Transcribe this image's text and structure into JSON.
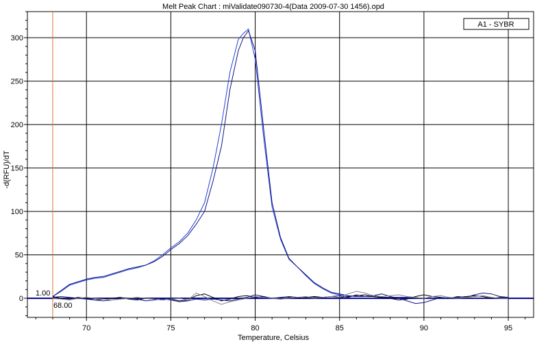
{
  "chart_data": {
    "type": "line",
    "title": "Melt Peak Chart : miValidate090730-4(Data 2009-07-30 1456).opd",
    "xlabel": "Temperature, Celsius",
    "ylabel": "-d(RFU)/dT",
    "xlim": [
      66.5,
      96.5
    ],
    "ylim": [
      -22,
      330
    ],
    "x_ticks": [
      70,
      75,
      80,
      85,
      90,
      95
    ],
    "y_ticks": [
      0,
      50,
      100,
      150,
      200,
      250,
      300
    ],
    "grid": true,
    "legend": {
      "entries": [
        "A1 - SYBR"
      ],
      "position": "top-right"
    },
    "threshold": {
      "value": 0,
      "label": "1.00"
    },
    "marker": {
      "value": 68,
      "label": "68.00"
    },
    "colors": {
      "series": "#1f3fd6",
      "series_alt": "#101080",
      "noise_dark": "#000000",
      "noise_gray": "#808080",
      "marker": "#e07030",
      "threshold": "#00008b"
    },
    "series": [
      {
        "values_x": [
          68,
          68.5,
          69,
          69.5,
          70,
          70.5,
          71,
          71.5,
          72,
          72.5,
          73,
          73.5,
          74,
          74.5,
          75,
          75.5,
          76,
          76.5,
          77,
          77.5,
          78,
          78.5,
          79,
          79.3,
          79.6,
          80,
          80.5,
          81,
          81.5,
          82,
          82.5,
          83,
          83.5,
          84,
          84.5,
          85,
          85.5,
          86,
          86.5,
          87,
          87.5,
          88,
          88.5,
          89,
          89.5,
          90,
          90.5,
          91,
          91.5,
          92,
          92.5,
          93,
          93.5,
          94,
          94.5,
          95
        ],
        "values_y": [
          2,
          8,
          15,
          18,
          21,
          23,
          24,
          27,
          30,
          33,
          35,
          38,
          43,
          50,
          58,
          65,
          75,
          90,
          110,
          150,
          200,
          260,
          298,
          305,
          310,
          275,
          185,
          105,
          68,
          45,
          36,
          26,
          17,
          11,
          6,
          4,
          3,
          2,
          2,
          2,
          1,
          1,
          1,
          1,
          0,
          0,
          0,
          0,
          0,
          0,
          0,
          0,
          0,
          0,
          0,
          0
        ]
      },
      {
        "values_x": [
          68,
          68.5,
          69,
          69.5,
          70,
          70.5,
          71,
          71.5,
          72,
          72.5,
          73,
          73.5,
          74,
          74.5,
          75,
          75.5,
          76,
          76.5,
          77,
          77.5,
          78,
          78.5,
          79,
          79.3,
          79.6,
          80,
          80.5,
          81,
          81.5,
          82,
          82.5,
          83,
          83.5,
          84,
          84.5,
          85,
          85.5,
          86,
          86.5,
          87,
          87.5,
          88,
          88.5,
          89,
          89.5,
          90,
          90.5,
          91,
          91.5,
          92,
          92.5,
          93,
          93.5,
          94,
          94.5,
          95
        ],
        "values_y": [
          2,
          9,
          16,
          19,
          22,
          24,
          25,
          28,
          31,
          34,
          36,
          38,
          42,
          48,
          56,
          63,
          72,
          85,
          100,
          135,
          175,
          240,
          285,
          300,
          308,
          285,
          195,
          110,
          70,
          46,
          36,
          27,
          18,
          12,
          7,
          5,
          3,
          2,
          2,
          2,
          1,
          1,
          1,
          1,
          0,
          0,
          0,
          0,
          0,
          0,
          0,
          0,
          0,
          0,
          0,
          0
        ]
      },
      {
        "values_x": [
          68,
          68.5,
          69,
          69.5,
          70,
          70.5,
          71,
          71.5,
          72,
          72.5,
          73,
          73.5,
          74,
          74.5,
          75,
          75.5,
          76,
          76.5,
          77,
          77.5,
          78,
          78.5,
          79,
          79.5,
          80,
          80.5,
          81,
          81.5,
          82,
          82.5,
          83,
          83.5,
          84,
          84.5,
          85,
          85.5,
          86,
          86.5,
          87,
          87.5,
          88,
          88.5,
          89,
          89.5,
          90,
          90.5,
          91,
          91.5,
          92,
          92.5,
          93,
          93.5,
          94,
          94.5,
          95
        ],
        "values_y": [
          2,
          0,
          -1,
          1,
          0,
          -2,
          -1,
          0,
          1,
          -1,
          -2,
          0,
          -1,
          -2,
          -1,
          -3,
          -2,
          3,
          5,
          1,
          -3,
          -1,
          2,
          3,
          1,
          2,
          0,
          -1,
          1,
          0,
          1,
          2,
          1,
          2,
          1,
          2,
          3,
          4,
          2,
          1,
          0,
          -2,
          -1,
          2,
          4,
          2,
          1,
          0,
          1,
          2,
          3,
          2,
          0,
          1,
          1
        ]
      },
      {
        "values_x": [
          68,
          68.5,
          69,
          69.5,
          70,
          70.5,
          71,
          71.5,
          72,
          72.5,
          73,
          73.5,
          74,
          74.5,
          75,
          75.5,
          76,
          76.5,
          77,
          77.5,
          78,
          78.5,
          79,
          79.5,
          80,
          80.5,
          81,
          81.5,
          82,
          82.5,
          83,
          83.5,
          84,
          84.5,
          85,
          85.5,
          86,
          86.5,
          87,
          87.5,
          88,
          88.5,
          89,
          89.5,
          90,
          90.5,
          91,
          91.5,
          92,
          92.5,
          93,
          93.5,
          94,
          94.5,
          95
        ],
        "values_y": [
          1,
          2,
          1,
          0,
          -1,
          -2,
          -3,
          -2,
          -1,
          0,
          -1,
          -3,
          -2,
          -1,
          -2,
          -4,
          -3,
          -1,
          -2,
          -1,
          -2,
          -3,
          -1,
          1,
          4,
          2,
          0,
          1,
          2,
          1,
          0,
          1,
          1,
          2,
          3,
          1,
          4,
          2,
          3,
          5,
          2,
          0,
          -3,
          -6,
          -5,
          -2,
          1,
          0,
          2,
          1,
          4,
          6,
          5,
          2,
          1
        ]
      },
      {
        "values_x": [
          68,
          68.5,
          69,
          69.5,
          70,
          70.5,
          71,
          71.5,
          72,
          72.5,
          73,
          73.5,
          74,
          74.5,
          75,
          75.5,
          76,
          76.5,
          77,
          77.5,
          78,
          78.5,
          79,
          79.5,
          80,
          80.5,
          81,
          81.5,
          82,
          82.5,
          83,
          83.5,
          84,
          84.5,
          85,
          85.5,
          86,
          86.5,
          87,
          87.5,
          88,
          88.5,
          89,
          89.5,
          90,
          90.5,
          91,
          91.5,
          92,
          92.5,
          93,
          93.5,
          94,
          94.5,
          95
        ],
        "values_y": [
          0,
          -1,
          -2,
          0,
          1,
          0,
          -1,
          -2,
          -1,
          0,
          1,
          0,
          -1,
          -2,
          -1,
          0,
          -2,
          6,
          2,
          -3,
          -7,
          -4,
          -2,
          0,
          2,
          1,
          0,
          -1,
          0,
          1,
          2,
          0,
          1,
          2,
          1,
          5,
          8,
          6,
          3,
          2,
          3,
          4,
          2,
          1,
          0,
          2,
          3,
          1,
          0,
          1,
          2,
          3,
          1,
          0,
          0
        ]
      }
    ]
  }
}
